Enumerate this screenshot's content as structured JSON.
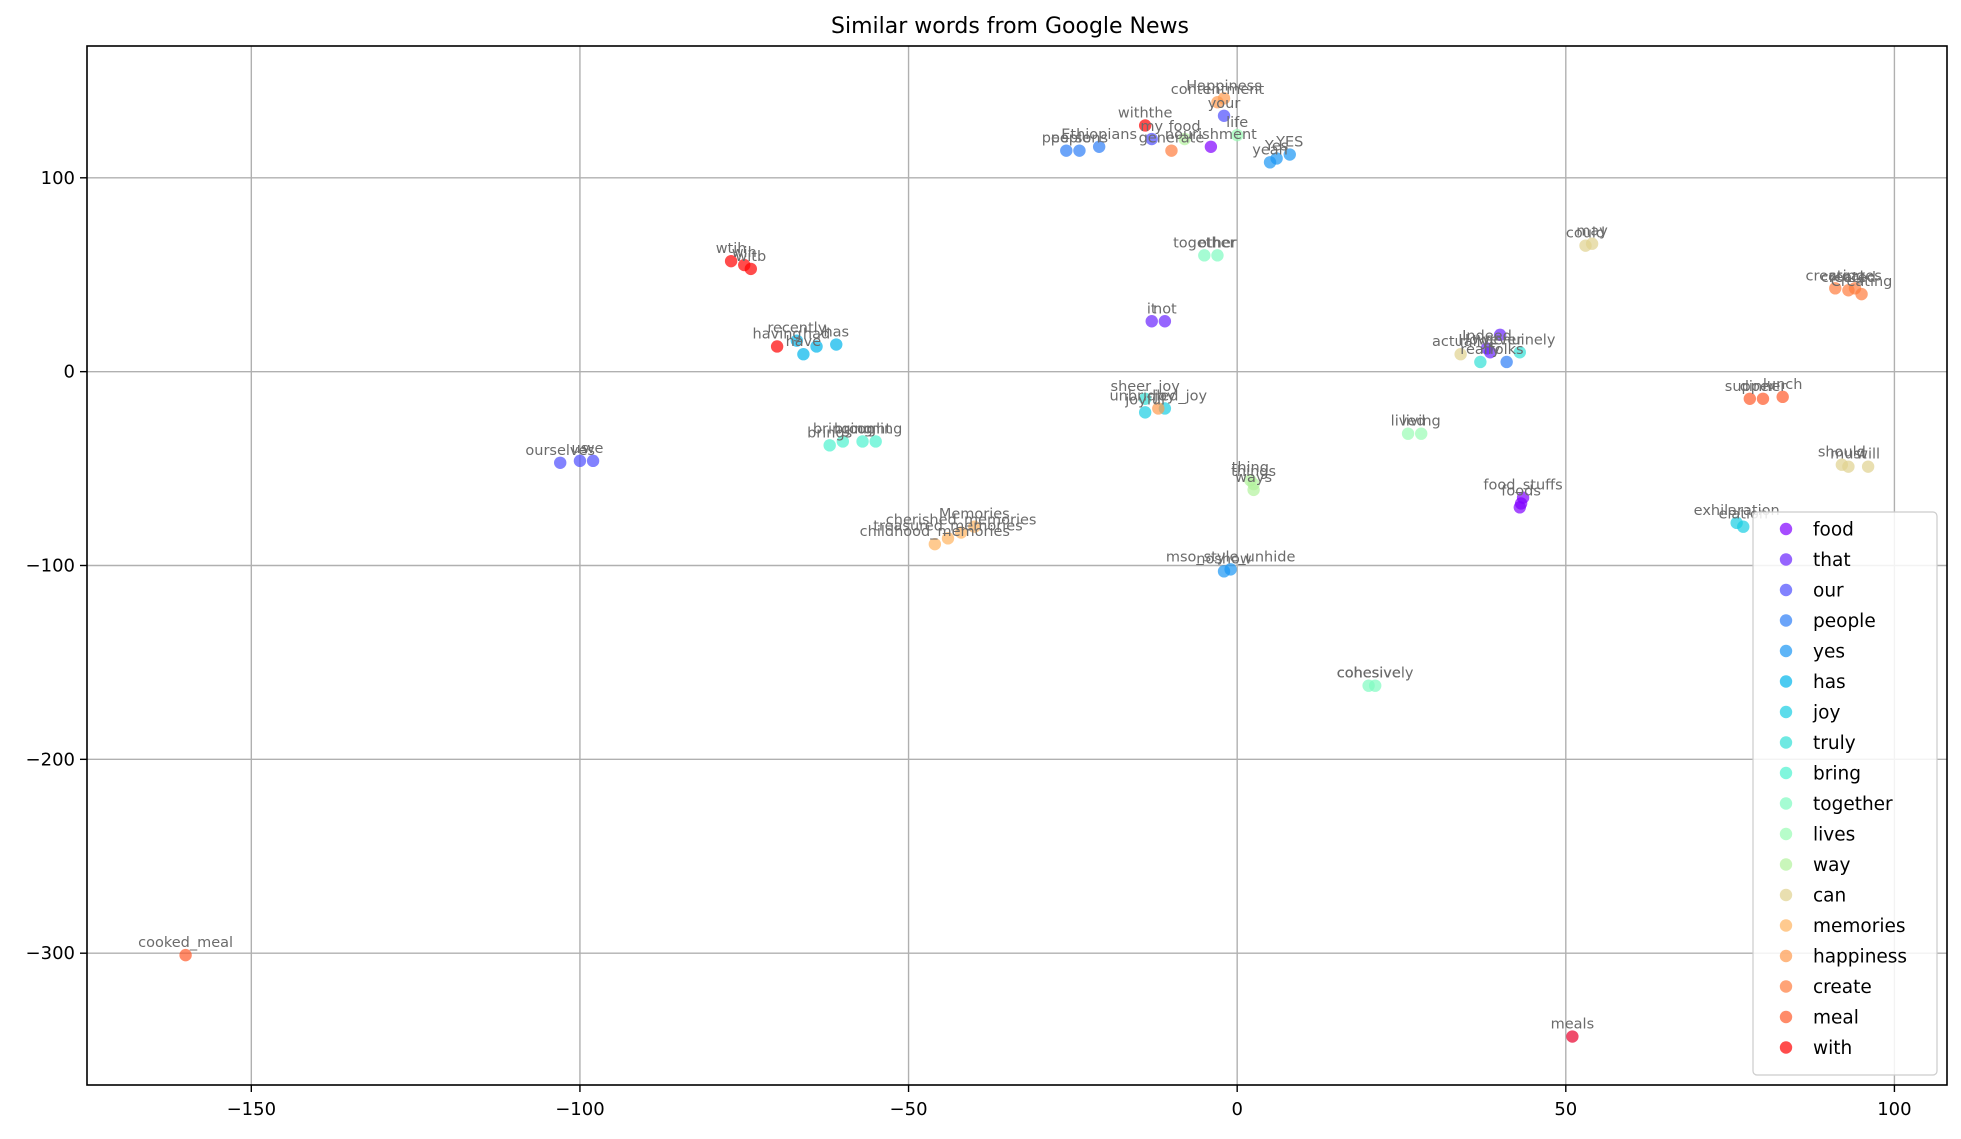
{
  "chart_data": {
    "type": "scatter",
    "title": "Similar words from Google News",
    "xlabel": "",
    "ylabel": "",
    "xlim": [
      -175,
      108
    ],
    "ylim": [
      -368,
      168
    ],
    "x_ticks": [
      -150,
      -100,
      -50,
      0,
      50,
      100
    ],
    "y_ticks": [
      100,
      0,
      -100,
      -200,
      -300
    ],
    "x_tick_labels": [
      "−150",
      "−100",
      "−50",
      "0",
      "50",
      "100"
    ],
    "y_tick_labels": [
      "100",
      "0",
      "−100",
      "−200",
      "−300"
    ],
    "grid": true,
    "legend_position": "lower right",
    "marker_alpha": 0.7,
    "series": [
      {
        "name": "food",
        "color": "#8000ff",
        "points": [
          {
            "x": 43.5,
            "y": -65,
            "label": "food_stuffs"
          },
          {
            "x": 43.2,
            "y": -68,
            "label": "foods"
          },
          {
            "x": 43.0,
            "y": -70,
            "label": ""
          },
          {
            "x": -4,
            "y": 116,
            "label": "nourishment"
          }
        ]
      },
      {
        "name": "that",
        "color": "#6a23fe",
        "points": [
          {
            "x": 38,
            "y": 12,
            "label": "Indeed"
          },
          {
            "x": 38.5,
            "y": 10,
            "label": "However"
          },
          {
            "x": 40,
            "y": 19,
            "label": ""
          },
          {
            "x": -13,
            "y": 26,
            "label": "it"
          },
          {
            "x": -11,
            "y": 26,
            "label": "not"
          }
        ]
      },
      {
        "name": "our",
        "color": "#4d4dfd",
        "points": [
          {
            "x": -103,
            "y": -47,
            "label": "ourselves"
          },
          {
            "x": -100,
            "y": -46,
            "label": "us"
          },
          {
            "x": -98,
            "y": -46,
            "label": "we"
          },
          {
            "x": -2,
            "y": 132,
            "label": "your"
          },
          {
            "x": -13,
            "y": 120,
            "label": "my"
          }
        ]
      },
      {
        "name": "people",
        "color": "#2c7ef7",
        "points": [
          {
            "x": -26,
            "y": 114,
            "label": "people"
          },
          {
            "x": -24,
            "y": 114,
            "label": "persons"
          },
          {
            "x": -21,
            "y": 116,
            "label": "Ethiopians"
          },
          {
            "x": 41,
            "y": 5,
            "label": "folks"
          }
        ]
      },
      {
        "name": "yes",
        "color": "#1996f3",
        "points": [
          {
            "x": 5,
            "y": 108,
            "label": "yeah"
          },
          {
            "x": 6,
            "y": 110,
            "label": "Yes"
          },
          {
            "x": 8,
            "y": 112,
            "label": "YES"
          },
          {
            "x": -2,
            "y": -103,
            "label": "noshow"
          },
          {
            "x": -1,
            "y": -102,
            "label": "mso_style_unhide"
          }
        ]
      },
      {
        "name": "has",
        "color": "#00b5eb",
        "points": [
          {
            "x": -66,
            "y": 9,
            "label": "have"
          },
          {
            "x": -64,
            "y": 13,
            "label": "had"
          },
          {
            "x": -61,
            "y": 14,
            "label": "has"
          },
          {
            "x": -67,
            "y": 16,
            "label": "recently"
          }
        ]
      },
      {
        "name": "joy",
        "color": "#18cde3",
        "points": [
          {
            "x": -14,
            "y": -21,
            "label": "joyful"
          },
          {
            "x": -11,
            "y": -19,
            "label": "joy"
          },
          {
            "x": 76,
            "y": -78,
            "label": "exhilaration"
          },
          {
            "x": 77,
            "y": -80,
            "label": "elation"
          }
        ]
      },
      {
        "name": "truly",
        "color": "#32e0d6",
        "points": [
          {
            "x": 37,
            "y": 5,
            "label": "really"
          },
          {
            "x": 43,
            "y": 10,
            "label": "genuinely"
          },
          {
            "x": -14,
            "y": -14,
            "label": "sheer_joy"
          }
        ]
      },
      {
        "name": "bring",
        "color": "#4cf2ce",
        "points": [
          {
            "x": -62,
            "y": -38,
            "label": "brings"
          },
          {
            "x": -60,
            "y": -36,
            "label": "bringing"
          },
          {
            "x": -57,
            "y": -36,
            "label": "brought"
          },
          {
            "x": -55,
            "y": -36,
            "label": "coming"
          }
        ]
      },
      {
        "name": "together",
        "color": "#7ffbc0",
        "points": [
          {
            "x": -5,
            "y": 60,
            "label": "together"
          },
          {
            "x": -3,
            "y": 60,
            "label": "other"
          },
          {
            "x": 20,
            "y": -162,
            "label": "cohesive"
          },
          {
            "x": 21,
            "y": -162,
            "label": "cohesively"
          }
        ]
      },
      {
        "name": "lives",
        "color": "#99fcb3",
        "points": [
          {
            "x": 26,
            "y": -32,
            "label": "lived"
          },
          {
            "x": 28,
            "y": -32,
            "label": "living"
          },
          {
            "x": 0,
            "y": 122,
            "label": "life"
          }
        ]
      },
      {
        "name": "way",
        "color": "#b2f29d",
        "points": [
          {
            "x": 2,
            "y": -56,
            "label": "thing"
          },
          {
            "x": 2.5,
            "y": -58,
            "label": "things"
          },
          {
            "x": 2.5,
            "y": -61,
            "label": "ways"
          },
          {
            "x": -8,
            "y": 120,
            "label": "food"
          }
        ]
      },
      {
        "name": "can",
        "color": "#e0d18e",
        "points": [
          {
            "x": 53,
            "y": 65,
            "label": "could"
          },
          {
            "x": 54,
            "y": 66,
            "label": "may"
          },
          {
            "x": 92,
            "y": -48,
            "label": "should"
          },
          {
            "x": 93,
            "y": -49,
            "label": "must"
          },
          {
            "x": 96,
            "y": -49,
            "label": "will"
          },
          {
            "x": 34,
            "y": 9,
            "label": "actually"
          }
        ]
      },
      {
        "name": "memories",
        "color": "#ffb360",
        "points": [
          {
            "x": -46,
            "y": -89,
            "label": "childhood_memories"
          },
          {
            "x": -44,
            "y": -86,
            "label": "treasured_memories"
          },
          {
            "x": -42,
            "y": -83,
            "label": "cherished_memories"
          },
          {
            "x": -40,
            "y": -80,
            "label": "Memories"
          }
        ]
      },
      {
        "name": "happiness",
        "color": "#ff9a4d",
        "points": [
          {
            "x": -2,
            "y": 141,
            "label": "Happiness"
          },
          {
            "x": -3,
            "y": 139,
            "label": "contentment"
          },
          {
            "x": -12,
            "y": -19,
            "label": "unbridled_joy"
          }
        ]
      },
      {
        "name": "create",
        "color": "#ff7c3d",
        "points": [
          {
            "x": 91,
            "y": 43,
            "label": "creating"
          },
          {
            "x": 93,
            "y": 42,
            "label": "created"
          },
          {
            "x": 94,
            "y": 43,
            "label": "creates"
          },
          {
            "x": 95,
            "y": 40,
            "label": "Creating"
          },
          {
            "x": -10,
            "y": 114,
            "label": "generate"
          }
        ]
      },
      {
        "name": "meal",
        "color": "#ff5a2a",
        "points": [
          {
            "x": -160,
            "y": -301,
            "label": "cooked_meal"
          },
          {
            "x": 78,
            "y": -14,
            "label": "supper"
          },
          {
            "x": 80,
            "y": -14,
            "label": "dinner"
          },
          {
            "x": 83,
            "y": -13,
            "label": "lunch"
          }
        ]
      },
      {
        "name": "with",
        "color": "#ff0000",
        "points": [
          {
            "x": -77,
            "y": 57,
            "label": "wtih"
          },
          {
            "x": -75,
            "y": 55,
            "label": "wih"
          },
          {
            "x": -74,
            "y": 53,
            "label": "witb"
          },
          {
            "x": -70,
            "y": 13,
            "label": "having"
          },
          {
            "x": -14,
            "y": 127,
            "label": "withthe"
          }
        ]
      },
      {
        "name": "",
        "color": "#e8002c",
        "points": [
          {
            "x": 51,
            "y": -343,
            "label": "meals"
          }
        ]
      }
    ]
  }
}
